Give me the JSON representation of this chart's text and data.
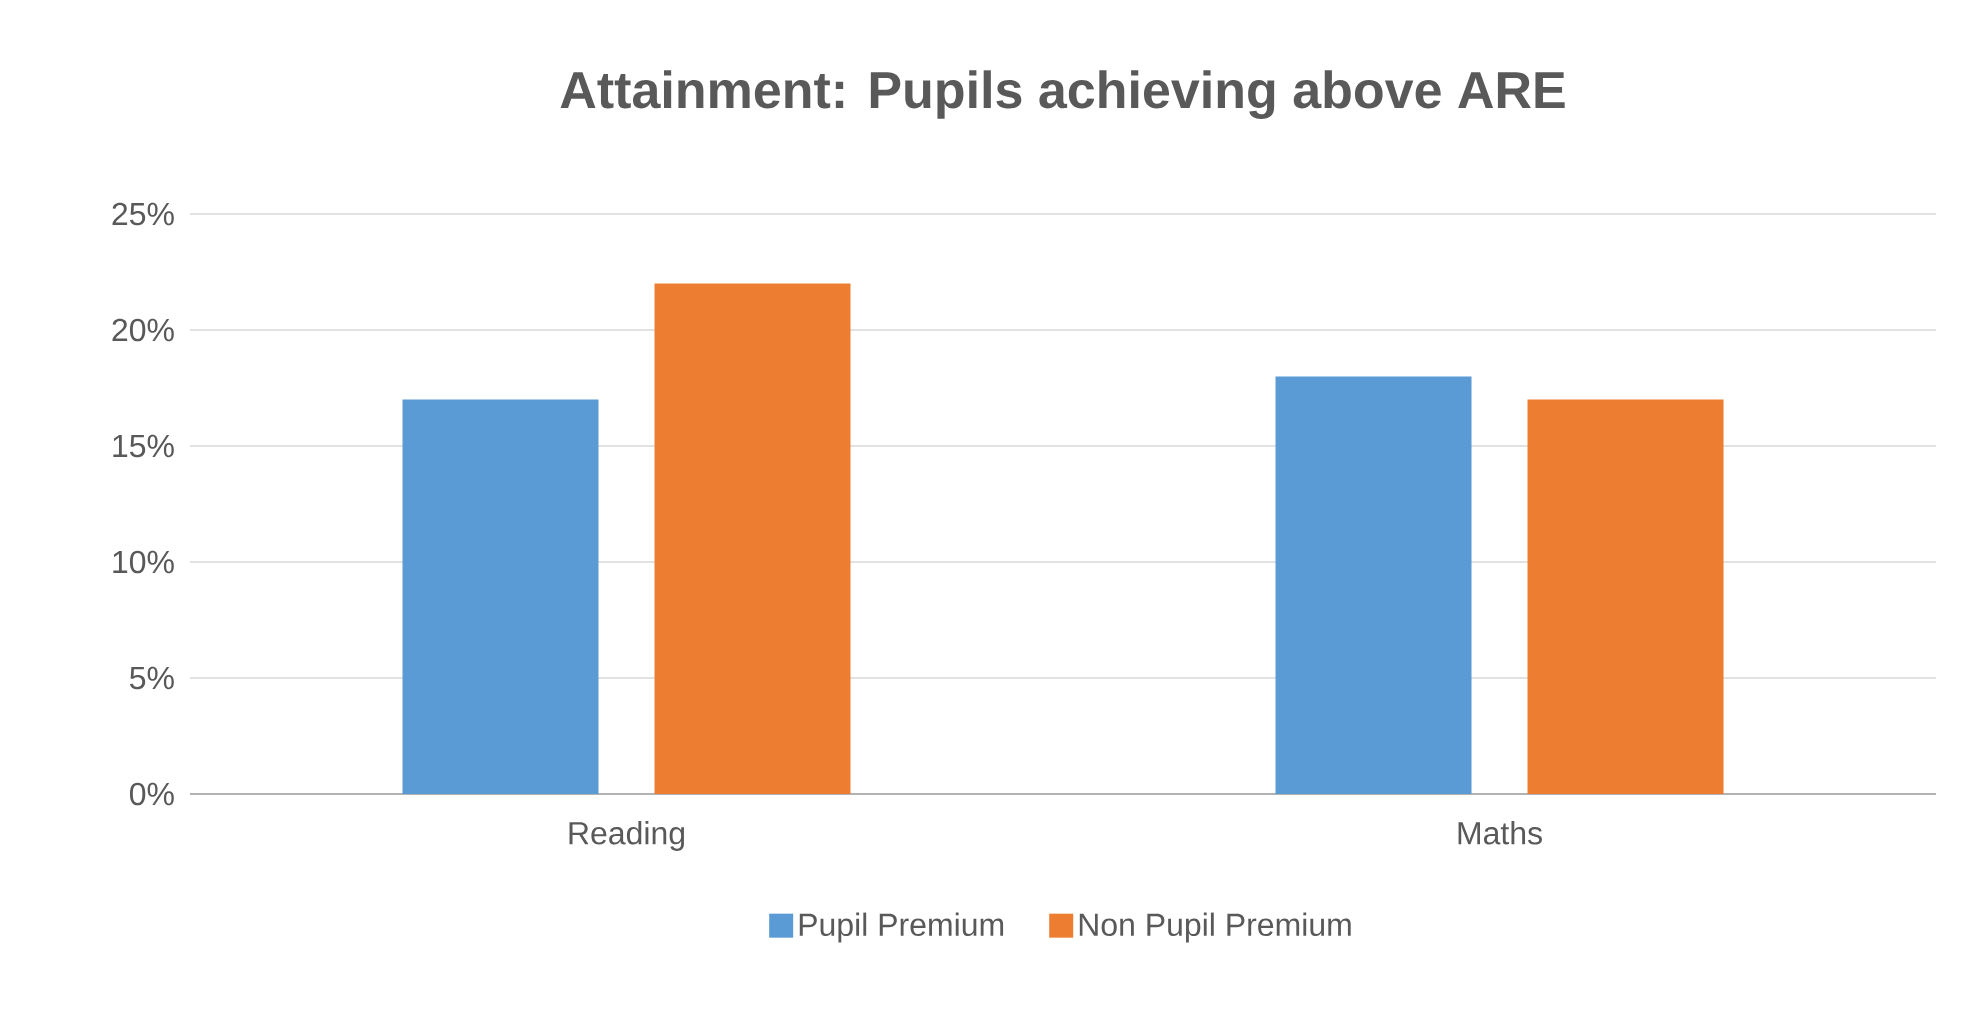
{
  "chart_data": {
    "type": "bar",
    "title": "Attainment: Pupils achieving above ARE",
    "categories": [
      "Reading",
      "Maths"
    ],
    "series": [
      {
        "name": "Pupil Premium",
        "color": "#5b9bd5",
        "values": [
          17,
          18
        ]
      },
      {
        "name": "Non Pupil Premium",
        "color": "#ed7d31",
        "values": [
          22,
          17
        ]
      }
    ],
    "ylim": [
      0,
      25
    ],
    "yticks": [
      {
        "value": 0,
        "label": "0%"
      },
      {
        "value": 5,
        "label": "5%"
      },
      {
        "value": 10,
        "label": "10%"
      },
      {
        "value": 15,
        "label": "15%"
      },
      {
        "value": 20,
        "label": "20%"
      },
      {
        "value": 25,
        "label": "25%"
      }
    ],
    "grid": "y",
    "legend": "bottom"
  }
}
